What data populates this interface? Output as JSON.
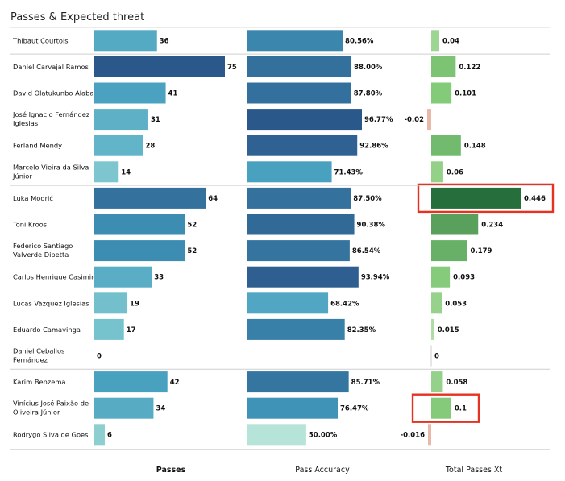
{
  "chart_data": {
    "type": "bar",
    "title": "Passes & Expected threat",
    "column_headers": [
      "Passes",
      "Pass Accuracy",
      "Total Passes Xt"
    ],
    "players": [
      {
        "name": [
          "Thibaut Courtois"
        ],
        "passes": 36,
        "accuracy": 80.56,
        "accuracy_label": "80.56%",
        "xt": 0.04,
        "xt_label": "0.04"
      },
      {
        "name": [
          "Daniel Carvajal Ramos"
        ],
        "passes": 75,
        "accuracy": 88.0,
        "accuracy_label": "88.00%",
        "xt": 0.122,
        "xt_label": "0.122"
      },
      {
        "name": [
          "David Olatukunbo Alaba"
        ],
        "passes": 41,
        "accuracy": 87.8,
        "accuracy_label": "87.80%",
        "xt": 0.101,
        "xt_label": "0.101"
      },
      {
        "name": [
          "José Ignacio Fernández",
          "Iglesias"
        ],
        "passes": 31,
        "accuracy": 96.77,
        "accuracy_label": "96.77%",
        "xt": -0.02,
        "xt_label": "-0.02"
      },
      {
        "name": [
          "Ferland Mendy"
        ],
        "passes": 28,
        "accuracy": 92.86,
        "accuracy_label": "92.86%",
        "xt": 0.148,
        "xt_label": "0.148"
      },
      {
        "name": [
          "Marcelo Vieira da Silva",
          "Júnior"
        ],
        "passes": 14,
        "accuracy": 71.43,
        "accuracy_label": "71.43%",
        "xt": 0.06,
        "xt_label": "0.06"
      },
      {
        "name": [
          "Luka Modrić"
        ],
        "passes": 64,
        "accuracy": 87.5,
        "accuracy_label": "87.50%",
        "xt": 0.446,
        "xt_label": "0.446",
        "highlight": true
      },
      {
        "name": [
          "Toni Kroos"
        ],
        "passes": 52,
        "accuracy": 90.38,
        "accuracy_label": "90.38%",
        "xt": 0.234,
        "xt_label": "0.234"
      },
      {
        "name": [
          "Federico Santiago",
          "Valverde Dipetta"
        ],
        "passes": 52,
        "accuracy": 86.54,
        "accuracy_label": "86.54%",
        "xt": 0.179,
        "xt_label": "0.179"
      },
      {
        "name": [
          "Carlos Henrique Casimiro"
        ],
        "passes": 33,
        "accuracy": 93.94,
        "accuracy_label": "93.94%",
        "xt": 0.093,
        "xt_label": "0.093"
      },
      {
        "name": [
          "Lucas Vázquez Iglesias"
        ],
        "passes": 19,
        "accuracy": 68.42,
        "accuracy_label": "68.42%",
        "xt": 0.053,
        "xt_label": "0.053"
      },
      {
        "name": [
          "Eduardo Camavinga"
        ],
        "passes": 17,
        "accuracy": 82.35,
        "accuracy_label": "82.35%",
        "xt": 0.015,
        "xt_label": "0.015"
      },
      {
        "name": [
          "Daniel Ceballos",
          "Fernández"
        ],
        "passes": 0,
        "accuracy": null,
        "accuracy_label": "",
        "xt": 0,
        "xt_label": "0"
      },
      {
        "name": [
          "Karim Benzema"
        ],
        "passes": 42,
        "accuracy": 85.71,
        "accuracy_label": "85.71%",
        "xt": 0.058,
        "xt_label": "0.058"
      },
      {
        "name": [
          "Vinícius José Paixão de",
          "Oliveira Júnior"
        ],
        "passes": 34,
        "accuracy": 76.47,
        "accuracy_label": "76.47%",
        "xt": 0.1,
        "xt_label": "0.1",
        "highlight": true
      },
      {
        "name": [
          "Rodrygo Silva de Goes"
        ],
        "passes": 6,
        "accuracy": 50.0,
        "accuracy_label": "50.00%",
        "xt": -0.016,
        "xt_label": "-0.016"
      }
    ],
    "group_separators_after": [
      0,
      5,
      12
    ],
    "grid": false,
    "legend": "none"
  }
}
